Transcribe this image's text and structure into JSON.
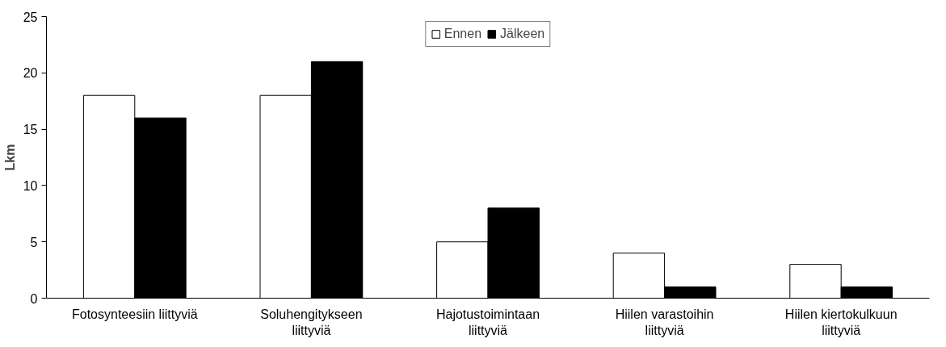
{
  "chart_data": {
    "type": "bar",
    "ylabel": "Lkm",
    "categories": [
      "Fotosynteesiin liittyviä",
      "Soluhengitykseen liittyviä",
      "Hajotustoimintaan liittyviä",
      "Hiilen varastoihin liittyviä",
      "Hiilen kiertokulkuun liittyviä"
    ],
    "series": [
      {
        "name": "Ennen",
        "color": "#ffffff",
        "values": [
          18,
          18,
          5,
          4,
          3
        ]
      },
      {
        "name": "Jälkeen",
        "color": "#000000",
        "values": [
          16,
          21,
          8,
          1,
          1
        ]
      }
    ],
    "ylim": [
      0,
      25
    ],
    "yticks": [
      0,
      5,
      10,
      15,
      20,
      25
    ],
    "grid": false,
    "legend": "top"
  }
}
